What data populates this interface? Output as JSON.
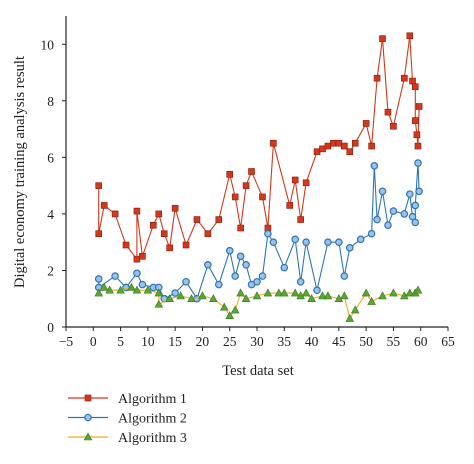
{
  "chart_data": {
    "type": "line",
    "title": "",
    "xlabel": "Test data set",
    "ylabel": "Digital economy training analysis result",
    "xlim": [
      -5,
      65
    ],
    "ylim": [
      0,
      11
    ],
    "xticks": [
      -5,
      0,
      5,
      10,
      15,
      20,
      25,
      30,
      35,
      40,
      45,
      50,
      55,
      60,
      65
    ],
    "xtick_labels": [
      "−5",
      "0",
      "5",
      "10",
      "15",
      "20",
      "25",
      "30",
      "35",
      "40",
      "45",
      "50",
      "55",
      "60",
      "65"
    ],
    "yticks": [
      0,
      2,
      4,
      6,
      8,
      10
    ],
    "ytick_labels": [
      "0",
      "2",
      "4",
      "6",
      "8",
      "10"
    ],
    "grid": false,
    "legend_position": "bottom-left",
    "series": [
      {
        "name": "Algorithm 1",
        "color": "#d0391d",
        "marker": "square",
        "x": [
          1,
          1,
          2,
          4,
          6,
          8,
          8,
          9,
          11,
          12,
          13,
          14,
          15,
          17,
          19,
          21,
          23,
          25,
          26,
          27,
          28,
          29,
          31,
          32,
          33,
          36,
          37,
          38,
          39,
          41,
          42,
          43,
          44,
          45,
          46,
          47,
          48,
          50,
          51,
          52,
          53,
          54,
          55,
          57,
          58,
          58.5,
          59,
          59,
          59.3,
          59.5,
          59.7
        ],
        "y": [
          5.0,
          3.3,
          4.3,
          4.0,
          2.9,
          2.4,
          4.1,
          2.5,
          3.6,
          4.0,
          3.3,
          2.8,
          4.2,
          2.9,
          3.8,
          3.3,
          3.8,
          5.4,
          4.6,
          3.5,
          5.0,
          5.5,
          4.6,
          3.5,
          6.5,
          4.3,
          5.2,
          3.8,
          5.1,
          6.2,
          6.3,
          6.4,
          6.5,
          6.5,
          6.4,
          6.2,
          6.5,
          7.2,
          6.4,
          8.8,
          10.2,
          7.6,
          7.1,
          8.8,
          10.3,
          8.7,
          8.5,
          7.3,
          6.8,
          6.4,
          7.8
        ]
      },
      {
        "name": "Algorithm 2",
        "color": "#2e75b6",
        "marker": "circle",
        "x": [
          1,
          1,
          4,
          6,
          8,
          9,
          11,
          12,
          13,
          15,
          17,
          19,
          21,
          23,
          25,
          26,
          27,
          28,
          29,
          30,
          31,
          32,
          33,
          35,
          37,
          38,
          39,
          41,
          43,
          45,
          46,
          47,
          49,
          51,
          51.5,
          52,
          53,
          54,
          55,
          57,
          58,
          58.5,
          59,
          59,
          59.5,
          59.7
        ],
        "y": [
          1.7,
          1.4,
          1.8,
          1.4,
          1.9,
          1.5,
          1.4,
          1.4,
          1.0,
          1.2,
          1.6,
          1.0,
          2.2,
          1.5,
          2.7,
          1.8,
          2.5,
          2.2,
          1.5,
          1.6,
          1.8,
          3.3,
          3.0,
          2.1,
          3.1,
          1.6,
          3.0,
          1.3,
          3.0,
          3.0,
          1.8,
          2.8,
          3.1,
          3.3,
          5.7,
          3.8,
          4.8,
          3.6,
          4.1,
          4.0,
          4.7,
          3.9,
          3.7,
          4.3,
          5.8,
          4.8
        ]
      },
      {
        "name": "Algorithm 3",
        "color": "#f0a81e",
        "marker": "triangle",
        "x": [
          1,
          2,
          3,
          5,
          7,
          8,
          10,
          12,
          12,
          14,
          16,
          18,
          20,
          22,
          24,
          25,
          26,
          27,
          28,
          30,
          32,
          34,
          35,
          37,
          38,
          39,
          40,
          42,
          43,
          45,
          46,
          47,
          48,
          50,
          51,
          53,
          55,
          57,
          58,
          59,
          59.5
        ],
        "y": [
          1.2,
          1.4,
          1.3,
          1.3,
          1.4,
          1.3,
          1.3,
          1.2,
          0.8,
          1.0,
          1.1,
          1.0,
          1.1,
          1.0,
          0.7,
          0.4,
          0.6,
          1.2,
          1.0,
          1.1,
          1.2,
          1.2,
          1.2,
          1.2,
          1.1,
          1.2,
          1.0,
          1.1,
          1.1,
          1.0,
          1.1,
          0.3,
          0.6,
          1.2,
          0.9,
          1.1,
          1.2,
          1.1,
          1.2,
          1.2,
          1.3
        ]
      }
    ]
  }
}
